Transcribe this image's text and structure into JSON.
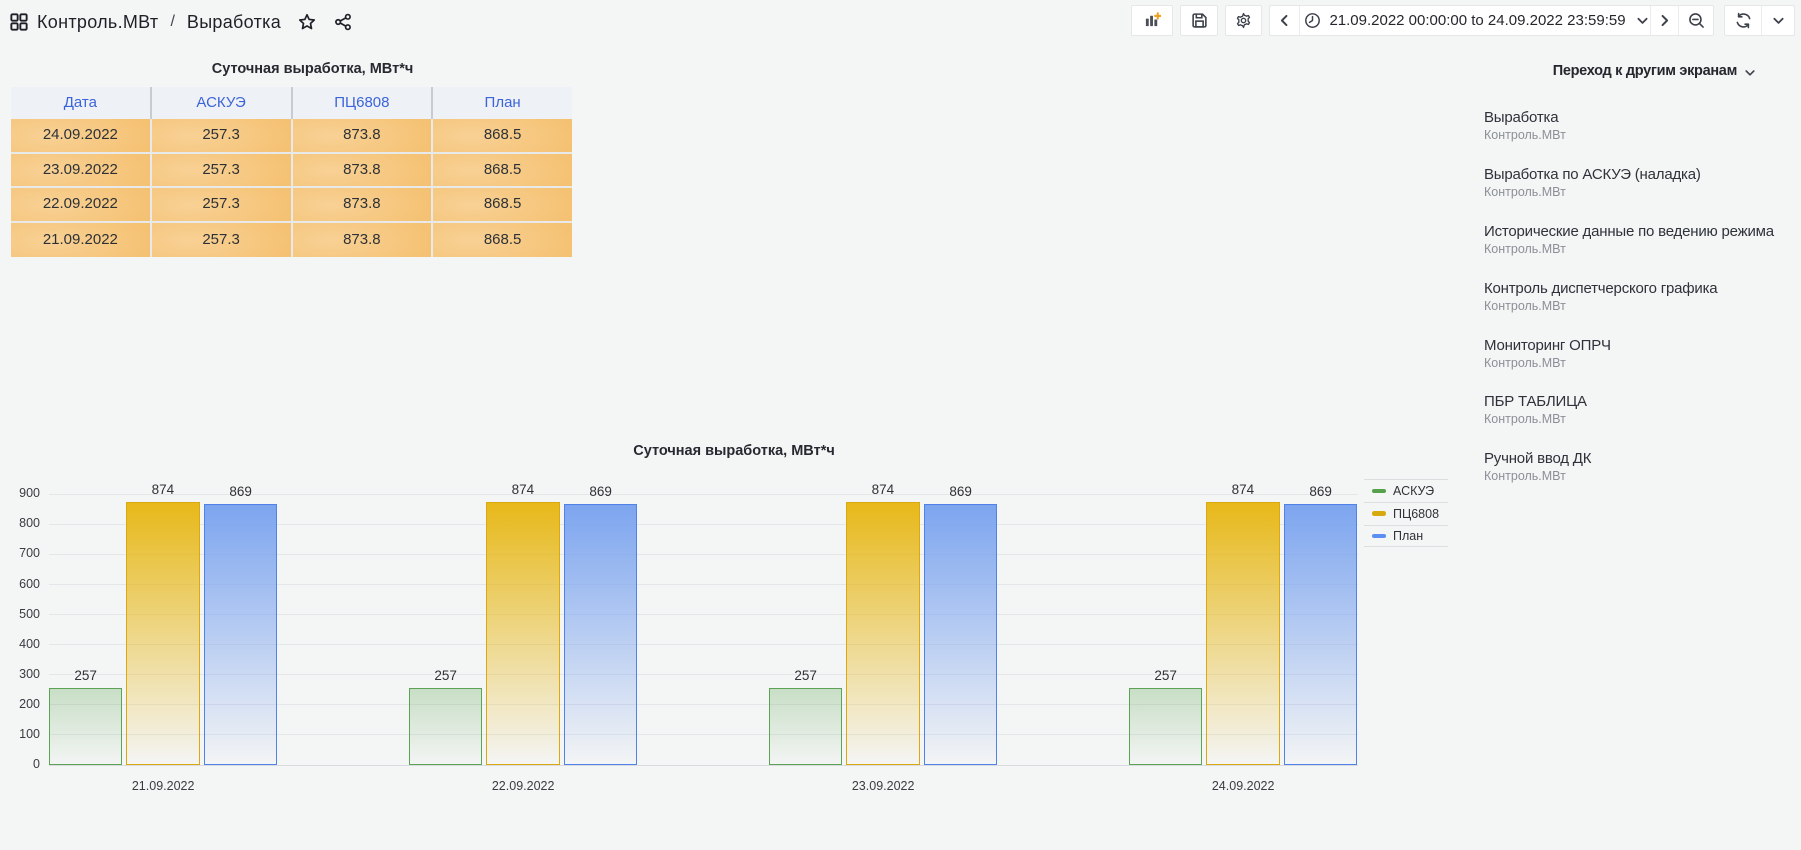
{
  "breadcrumb": {
    "dashboard": "Контроль.МВт",
    "separator": "/",
    "page": "Выработка"
  },
  "toolbar": {
    "icons": [
      "add-panel-icon",
      "save-dashboard-icon",
      "dashboard-settings-icon",
      "time-range-back-icon",
      "clock-icon",
      "time-range-forward-icon",
      "zoom-out-icon",
      "refresh-icon",
      "refresh-interval-icon"
    ],
    "time_range": "21.09.2022 00:00:00 to 24.09.2022 23:59:59"
  },
  "table_panel": {
    "title": "Суточная выработка, МВт*ч",
    "columns": [
      "Дата",
      "АСКУЭ",
      "ПЦ6808",
      "План"
    ],
    "rows": [
      [
        "24.09.2022",
        "257.3",
        "873.8",
        "868.5"
      ],
      [
        "23.09.2022",
        "257.3",
        "873.8",
        "868.5"
      ],
      [
        "22.09.2022",
        "257.3",
        "873.8",
        "868.5"
      ],
      [
        "21.09.2022",
        "257.3",
        "873.8",
        "868.5"
      ]
    ]
  },
  "dashlist_panel": {
    "title": "Переход к другим экранам",
    "items": [
      {
        "title": "Выработка",
        "folder": "Контроль.МВт"
      },
      {
        "title": "Выработка по АСКУЭ (наладка)",
        "folder": "Контроль.МВт"
      },
      {
        "title": "Исторические данные по ведению режима",
        "folder": "Контроль.МВт"
      },
      {
        "title": "Контроль диспетчерского графика",
        "folder": "Контроль.МВт"
      },
      {
        "title": "Мониторинг ОПРЧ",
        "folder": "Контроль.МВт"
      },
      {
        "title": "ПБР ТАБЛИЦА",
        "folder": "Контроль.МВт"
      },
      {
        "title": "Ручной ввод ДК",
        "folder": "Контроль.МВт"
      }
    ]
  },
  "chart_data": {
    "type": "bar",
    "title": "Суточная выработка, МВт*ч",
    "categories": [
      "21.09.2022",
      "22.09.2022",
      "23.09.2022",
      "24.09.2022"
    ],
    "series": [
      {
        "name": "АСКУЭ",
        "color": "#5aa64f",
        "border": "#5ca355",
        "legend_color": "#56a24c",
        "values": [
          257.3,
          257.3,
          257.3,
          257.3
        ]
      },
      {
        "name": "ПЦ6808",
        "color": "#e7b714",
        "border": "#d9a90f",
        "legend_color": "#d7a90d",
        "values": [
          873.8,
          873.8,
          873.8,
          873.8
        ]
      },
      {
        "name": "План",
        "color": "#78a2ef",
        "border": "#5082e8",
        "legend_color": "#5b8ef0",
        "values": [
          868.5,
          868.5,
          868.5,
          868.5
        ]
      }
    ],
    "ylim": [
      0,
      900
    ],
    "ytick_step": 100,
    "xlabel": "",
    "ylabel": "",
    "bar_value_labels": true,
    "legend_position": "right",
    "grid": true
  }
}
